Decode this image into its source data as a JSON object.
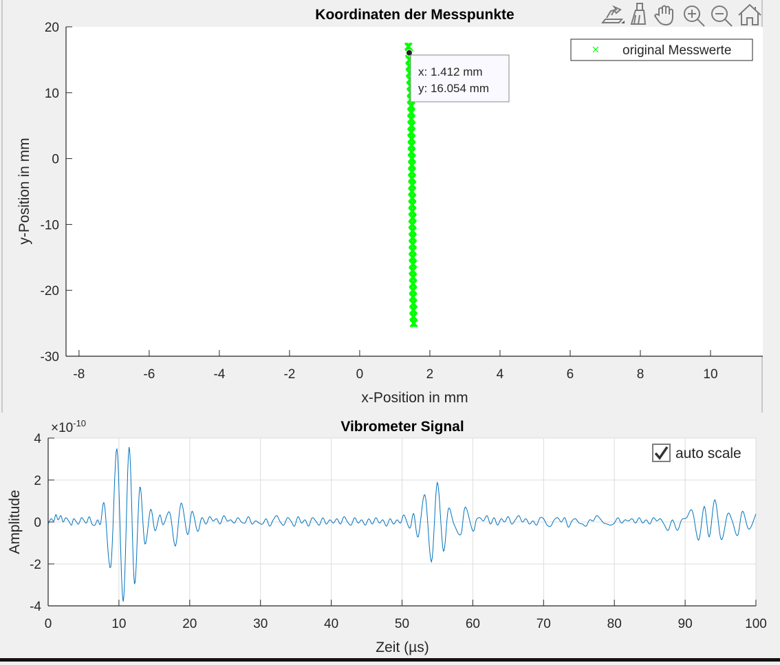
{
  "toolbar": {
    "icons": [
      "edit-plot-icon",
      "brush-icon",
      "pan-hand-icon",
      "zoom-in-icon",
      "zoom-out-icon",
      "home-icon"
    ]
  },
  "colors": {
    "background": "#f0f0f0",
    "green": "#00ff00",
    "signal": "#0072bd",
    "grid": "#dcdcdc"
  },
  "chart_data": [
    {
      "type": "scatter",
      "title": "Koordinaten der Messpunkte",
      "xlabel": "x-Position in mm",
      "ylabel": "y-Position in mm",
      "xlim": [
        -8.37,
        11.49
      ],
      "ylim": [
        -30,
        20
      ],
      "xticks": [
        -8,
        -6,
        -4,
        -2,
        0,
        2,
        4,
        6,
        8,
        10
      ],
      "yticks": [
        20,
        10,
        0,
        -10,
        -20,
        -30
      ],
      "grid": false,
      "legend": {
        "position": "top-right",
        "entries": [
          "original Messwerte"
        ]
      },
      "series": [
        {
          "name": "original Messwerte",
          "marker": "x",
          "color": "#00ff00",
          "points": [
            [
              1.39,
              17
            ],
            [
              1.41,
              16
            ],
            [
              1.42,
              15
            ],
            [
              1.42,
              14
            ],
            [
              1.43,
              13
            ],
            [
              1.44,
              12
            ],
            [
              1.45,
              11
            ],
            [
              1.46,
              10
            ],
            [
              1.46,
              9
            ],
            [
              1.47,
              8
            ],
            [
              1.47,
              7
            ],
            [
              1.47,
              6
            ],
            [
              1.48,
              5
            ],
            [
              1.47,
              4
            ],
            [
              1.48,
              3
            ],
            [
              1.48,
              2
            ],
            [
              1.48,
              1
            ],
            [
              1.49,
              0
            ],
            [
              1.49,
              -1
            ],
            [
              1.49,
              -2
            ],
            [
              1.49,
              -3
            ],
            [
              1.5,
              -4
            ],
            [
              1.49,
              -5
            ],
            [
              1.5,
              -6
            ],
            [
              1.5,
              -7
            ],
            [
              1.5,
              -8
            ],
            [
              1.51,
              -9
            ],
            [
              1.5,
              -10
            ],
            [
              1.51,
              -11
            ],
            [
              1.51,
              -12
            ],
            [
              1.51,
              -13
            ],
            [
              1.51,
              -14
            ],
            [
              1.51,
              -15
            ],
            [
              1.52,
              -16
            ],
            [
              1.51,
              -17
            ],
            [
              1.52,
              -18
            ],
            [
              1.52,
              -19
            ],
            [
              1.52,
              -20
            ],
            [
              1.52,
              -21
            ],
            [
              1.53,
              -22
            ],
            [
              1.53,
              -23
            ],
            [
              1.53,
              -24
            ],
            [
              1.54,
              -25
            ]
          ]
        }
      ],
      "datatip": {
        "x": 1.412,
        "y": 16.054,
        "x_text": "x: 1.412 mm",
        "y_text": "y: 16.054 mm"
      }
    },
    {
      "type": "line",
      "title": "Vibrometer Signal",
      "xlabel": "Zeit  (µs)",
      "ylabel": "Amplitude",
      "exponent_label": "×10",
      "exponent": "-10",
      "xlim": [
        0,
        100
      ],
      "ylim": [
        -4,
        4
      ],
      "xticks": [
        0,
        10,
        20,
        30,
        40,
        50,
        60,
        70,
        80,
        90,
        100
      ],
      "yticks": [
        4,
        2,
        0,
        -2,
        -4
      ],
      "grid": true,
      "checkbox": {
        "label": "auto scale",
        "checked": true
      },
      "series": [
        {
          "name": "signal",
          "color": "#0072bd",
          "points": [
            [
              0,
              -0.1
            ],
            [
              0.4,
              0.15
            ],
            [
              0.8,
              0.05
            ],
            [
              1.1,
              0.35
            ],
            [
              1.4,
              0.1
            ],
            [
              1.8,
              0.3
            ],
            [
              2.1,
              0
            ],
            [
              2.5,
              0.2
            ],
            [
              2.9,
              0.05
            ],
            [
              3.3,
              -0.15
            ],
            [
              3.6,
              0.15
            ],
            [
              4.0,
              0
            ],
            [
              4.3,
              -0.1
            ],
            [
              4.7,
              0.2
            ],
            [
              5.0,
              0.1
            ],
            [
              5.4,
              -0.05
            ],
            [
              5.8,
              0.25
            ],
            [
              6.2,
              -0.1
            ],
            [
              6.6,
              -0.15
            ],
            [
              7.0,
              0.1
            ],
            [
              7.4,
              -0.1
            ],
            [
              7.94,
              0.86
            ],
            [
              8.84,
              -2.16
            ],
            [
              9.72,
              3.5
            ],
            [
              10.6,
              -3.8
            ],
            [
              11.44,
              3.57
            ],
            [
              12.2,
              -2.96
            ],
            [
              12.95,
              1.66
            ],
            [
              13.67,
              -1.05
            ],
            [
              14.48,
              0.6
            ],
            [
              15.1,
              -0.42
            ],
            [
              15.77,
              0.33
            ],
            [
              16.26,
              -0.13
            ],
            [
              17.17,
              0.46
            ],
            [
              17.98,
              -1.15
            ],
            [
              18.79,
              0.9
            ],
            [
              19.7,
              -0.6
            ],
            [
              20.34,
              0.51
            ],
            [
              21.12,
              -0.45
            ],
            [
              21.7,
              0.2
            ],
            [
              22.3,
              -0.1
            ],
            [
              22.8,
              0.25
            ],
            [
              23.3,
              0.05
            ],
            [
              23.8,
              0.15
            ],
            [
              24.3,
              -0.1
            ],
            [
              24.8,
              0.3
            ],
            [
              25.3,
              0.05
            ],
            [
              25.8,
              0.1
            ],
            [
              26.3,
              -0.05
            ],
            [
              26.8,
              0.2
            ],
            [
              27.3,
              0
            ],
            [
              27.8,
              -0.05
            ],
            [
              28.3,
              0.25
            ],
            [
              28.8,
              -0.1
            ],
            [
              29.3,
              0.05
            ],
            [
              29.8,
              -0.05
            ],
            [
              30.3,
              -0.1
            ],
            [
              30.8,
              0.15
            ],
            [
              31.3,
              -0.2
            ],
            [
              31.8,
              0.1
            ],
            [
              32.3,
              0.3
            ],
            [
              32.8,
              0
            ],
            [
              33.3,
              -0.15
            ],
            [
              33.8,
              0.2
            ],
            [
              34.3,
              0.05
            ],
            [
              34.8,
              -0.2
            ],
            [
              35.3,
              0.25
            ],
            [
              35.8,
              -0.05
            ],
            [
              36.3,
              0.1
            ],
            [
              36.8,
              -0.2
            ],
            [
              37.3,
              0.2
            ],
            [
              37.8,
              0.05
            ],
            [
              38.3,
              -0.15
            ],
            [
              38.8,
              0.2
            ],
            [
              39.3,
              -0.1
            ],
            [
              39.8,
              0.1
            ],
            [
              40.3,
              -0.05
            ],
            [
              40.8,
              0.15
            ],
            [
              41.3,
              -0.1
            ],
            [
              41.8,
              0.25
            ],
            [
              42.3,
              0
            ],
            [
              42.8,
              -0.15
            ],
            [
              43.3,
              0.2
            ],
            [
              43.8,
              -0.05
            ],
            [
              44.3,
              0.1
            ],
            [
              44.8,
              -0.15
            ],
            [
              45.3,
              0.15
            ],
            [
              45.8,
              -0.1
            ],
            [
              46.3,
              0.2
            ],
            [
              46.8,
              -0.05
            ],
            [
              47.3,
              0.1
            ],
            [
              47.8,
              -0.2
            ],
            [
              48.3,
              0.15
            ],
            [
              48.8,
              -0.1
            ],
            [
              49.3,
              0.1
            ],
            [
              49.8,
              -0.05
            ],
            [
              50.28,
              0.33
            ],
            [
              51.1,
              -0.3
            ],
            [
              51.64,
              0.4
            ],
            [
              52.28,
              -0.71
            ],
            [
              53.23,
              1.3
            ],
            [
              54.16,
              -1.9
            ],
            [
              54.98,
              1.88
            ],
            [
              55.84,
              -1.39
            ],
            [
              56.55,
              0.63
            ],
            [
              57.33,
              -0.1
            ],
            [
              58.3,
              -0.6
            ],
            [
              58.94,
              0.71
            ],
            [
              60.0,
              -0.43
            ],
            [
              60.5,
              0.1
            ],
            [
              61,
              0.2
            ],
            [
              61.5,
              0.05
            ],
            [
              62,
              0.3
            ],
            [
              62.5,
              -0.1
            ],
            [
              63,
              0.2
            ],
            [
              63.5,
              -0.15
            ],
            [
              64,
              0.15
            ],
            [
              64.5,
              0
            ],
            [
              65,
              0.25
            ],
            [
              65.5,
              -0.1
            ],
            [
              66,
              0.1
            ],
            [
              66.5,
              0.3
            ],
            [
              67,
              0
            ],
            [
              67.5,
              0.15
            ],
            [
              68,
              -0.1
            ],
            [
              68.5,
              0.05
            ],
            [
              69,
              -0.15
            ],
            [
              69.5,
              0.2
            ],
            [
              70,
              0.15
            ],
            [
              70.5,
              -0.15
            ],
            [
              71,
              -0.2
            ],
            [
              71.5,
              0.1
            ],
            [
              72,
              0.2
            ],
            [
              72.5,
              0
            ],
            [
              73,
              0.2
            ],
            [
              73.5,
              -0.25
            ],
            [
              74,
              0.05
            ],
            [
              74.5,
              0.15
            ],
            [
              75,
              -0.05
            ],
            [
              75.5,
              -0.1
            ],
            [
              76,
              -0.2
            ],
            [
              76.5,
              0.1
            ],
            [
              77,
              0.05
            ],
            [
              77.5,
              0.3
            ],
            [
              78,
              0.15
            ],
            [
              78.5,
              -0.05
            ],
            [
              79,
              -0.1
            ],
            [
              79.5,
              -0.15
            ],
            [
              80,
              -0.05
            ],
            [
              80.5,
              0.2
            ],
            [
              81,
              -0.05
            ],
            [
              81.5,
              0.1
            ],
            [
              82,
              0.05
            ],
            [
              82.5,
              0.15
            ],
            [
              83,
              -0.05
            ],
            [
              83.5,
              0.2
            ],
            [
              84,
              -0.05
            ],
            [
              84.5,
              0.1
            ],
            [
              85,
              -0.1
            ],
            [
              85.5,
              0.2
            ],
            [
              86,
              0.05
            ],
            [
              86.5,
              0.15
            ],
            [
              87,
              -0.1
            ],
            [
              87.6,
              -0.4
            ],
            [
              88.2,
              0.1
            ],
            [
              88.9,
              -0.4
            ],
            [
              89.5,
              0.1
            ],
            [
              90.2,
              0.2
            ],
            [
              91.0,
              0.54
            ],
            [
              91.9,
              -0.87
            ],
            [
              92.7,
              0.74
            ],
            [
              93.4,
              -0.71
            ],
            [
              94.2,
              1.06
            ],
            [
              95.1,
              -0.84
            ],
            [
              96.0,
              0.38
            ],
            [
              96.6,
              0.1
            ],
            [
              97.4,
              -0.65
            ],
            [
              98.1,
              0.51
            ],
            [
              99.0,
              -0.35
            ],
            [
              100,
              0.38
            ]
          ]
        }
      ]
    }
  ]
}
